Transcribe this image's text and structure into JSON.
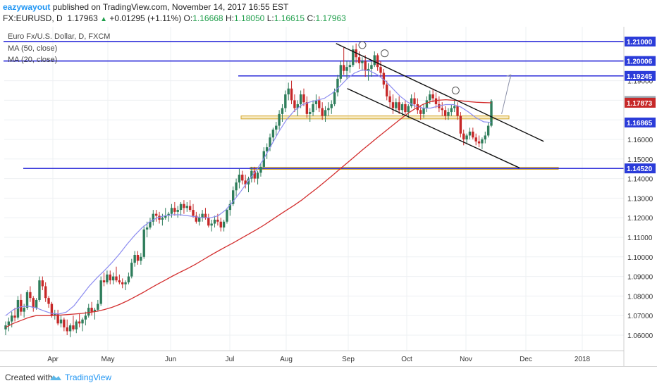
{
  "header": {
    "author": "eazywayout",
    "published_text": "published on TradingView.com, November 14, 2017 16:55 EST",
    "symbol": "FX:EURUSD, D",
    "last": "1.17963",
    "change": "+0.01295 (+1.11%)",
    "o_label": "O:",
    "o": "1.16668",
    "h_label": "H:",
    "h": "1.18050",
    "l_label": "L:",
    "l": "1.16615",
    "c_label": "C:",
    "c": "1.17963"
  },
  "legend": {
    "title": "Euro Fx/U.S. Dollar, D, FXCM",
    "ma50": "MA (50, close)",
    "ma20": "MA (20, close)"
  },
  "footer": {
    "created_with": "Created with",
    "brand": "TradingView"
  },
  "colors": {
    "up": "#2e7d5b",
    "down": "#c62828",
    "ma50": "#d32f2f",
    "ma20": "#8c8cf0",
    "level_line": "#1a1ad6",
    "zone": "#d4a72c",
    "price_tag": "#2b3cd9"
  },
  "chart_data": {
    "type": "candlestick",
    "symbol": "EURUSD",
    "timeframe": "D",
    "ylim": [
      1.055,
      1.215
    ],
    "x_tick_labels": [
      "Apr",
      "May",
      "Jun",
      "Jul",
      "Aug",
      "Sep",
      "Oct",
      "Nov",
      "Dec",
      "2018"
    ],
    "y_tick_labels": [
      "1.06000",
      "1.07000",
      "1.08000",
      "1.09000",
      "1.10000",
      "1.11000",
      "1.12000",
      "1.13000",
      "1.14000",
      "1.15000",
      "1.16000",
      "1.17000",
      "1.18000",
      "1.19000",
      "1.20000",
      "1.21000"
    ],
    "y_tick_values": [
      1.06,
      1.07,
      1.08,
      1.09,
      1.1,
      1.11,
      1.12,
      1.13,
      1.14,
      1.15,
      1.16,
      1.17,
      1.18,
      1.19,
      1.2,
      1.21
    ],
    "price_labels": [
      {
        "text": "1.21000",
        "value": 1.21,
        "kind": "level"
      },
      {
        "text": "1.20006",
        "value": 1.20006,
        "kind": "level"
      },
      {
        "text": "1.19245",
        "value": 1.19245,
        "kind": "level"
      },
      {
        "text": "1.17963",
        "value": 1.17963,
        "kind": "last"
      },
      {
        "text": "1.17873",
        "value": 1.17873,
        "kind": "ma50"
      },
      {
        "text": "1.16865",
        "value": 1.16865,
        "kind": "ma20"
      },
      {
        "text": "1.14520",
        "value": 1.1452,
        "kind": "level"
      }
    ],
    "horizontal_levels": [
      1.21,
      1.20006,
      1.19245,
      1.1452
    ],
    "support_zone": [
      1.1705,
      1.172
    ],
    "support_zone_lower": [
      1.1448,
      1.1458
    ],
    "candles": [
      [
        1.063,
        1.067,
        1.06,
        1.065
      ],
      [
        1.065,
        1.069,
        1.062,
        1.067
      ],
      [
        1.067,
        1.072,
        1.064,
        1.07
      ],
      [
        1.07,
        1.074,
        1.067,
        1.069
      ],
      [
        1.069,
        1.08,
        1.068,
        1.078
      ],
      [
        1.078,
        1.081,
        1.07,
        1.072
      ],
      [
        1.072,
        1.076,
        1.069,
        1.074
      ],
      [
        1.074,
        1.083,
        1.073,
        1.082
      ],
      [
        1.082,
        1.085,
        1.077,
        1.079
      ],
      [
        1.079,
        1.08,
        1.072,
        1.074
      ],
      [
        1.074,
        1.079,
        1.073,
        1.078
      ],
      [
        1.078,
        1.09,
        1.077,
        1.088
      ],
      [
        1.088,
        1.09,
        1.083,
        1.085
      ],
      [
        1.085,
        1.087,
        1.077,
        1.079
      ],
      [
        1.079,
        1.08,
        1.074,
        1.076
      ],
      [
        1.076,
        1.077,
        1.069,
        1.07
      ],
      [
        1.07,
        1.073,
        1.068,
        1.071
      ],
      [
        1.071,
        1.073,
        1.065,
        1.066
      ],
      [
        1.066,
        1.07,
        1.064,
        1.068
      ],
      [
        1.068,
        1.069,
        1.062,
        1.064
      ],
      [
        1.064,
        1.068,
        1.06,
        1.062
      ],
      [
        1.062,
        1.066,
        1.059,
        1.065
      ],
      [
        1.065,
        1.07,
        1.062,
        1.063
      ],
      [
        1.063,
        1.068,
        1.061,
        1.067
      ],
      [
        1.067,
        1.071,
        1.064,
        1.066
      ],
      [
        1.066,
        1.069,
        1.062,
        1.068
      ],
      [
        1.068,
        1.072,
        1.065,
        1.07
      ],
      [
        1.07,
        1.076,
        1.069,
        1.074
      ],
      [
        1.074,
        1.077,
        1.07,
        1.072
      ],
      [
        1.072,
        1.074,
        1.068,
        1.073
      ],
      [
        1.073,
        1.078,
        1.072,
        1.076
      ],
      [
        1.076,
        1.09,
        1.075,
        1.088
      ],
      [
        1.088,
        1.092,
        1.085,
        1.087
      ],
      [
        1.087,
        1.093,
        1.086,
        1.091
      ],
      [
        1.091,
        1.093,
        1.086,
        1.088
      ],
      [
        1.088,
        1.092,
        1.086,
        1.09
      ],
      [
        1.09,
        1.095,
        1.087,
        1.088
      ],
      [
        1.088,
        1.091,
        1.086,
        1.087
      ],
      [
        1.087,
        1.089,
        1.084,
        1.086
      ],
      [
        1.086,
        1.088,
        1.083,
        1.087
      ],
      [
        1.087,
        1.092,
        1.086,
        1.09
      ],
      [
        1.09,
        1.099,
        1.089,
        1.097
      ],
      [
        1.097,
        1.103,
        1.095,
        1.101
      ],
      [
        1.101,
        1.103,
        1.096,
        1.098
      ],
      [
        1.098,
        1.102,
        1.096,
        1.1
      ],
      [
        1.1,
        1.116,
        1.099,
        1.114
      ],
      [
        1.114,
        1.118,
        1.11,
        1.115
      ],
      [
        1.115,
        1.12,
        1.114,
        1.118
      ],
      [
        1.118,
        1.124,
        1.116,
        1.122
      ],
      [
        1.122,
        1.124,
        1.118,
        1.121
      ],
      [
        1.121,
        1.123,
        1.117,
        1.119
      ],
      [
        1.119,
        1.122,
        1.116,
        1.12
      ],
      [
        1.12,
        1.125,
        1.119,
        1.121
      ],
      [
        1.121,
        1.123,
        1.118,
        1.122
      ],
      [
        1.122,
        1.127,
        1.12,
        1.125
      ],
      [
        1.125,
        1.128,
        1.121,
        1.123
      ],
      [
        1.123,
        1.126,
        1.12,
        1.124
      ],
      [
        1.124,
        1.128,
        1.121,
        1.127
      ],
      [
        1.127,
        1.129,
        1.122,
        1.125
      ],
      [
        1.125,
        1.128,
        1.123,
        1.126
      ],
      [
        1.126,
        1.129,
        1.123,
        1.124
      ],
      [
        1.124,
        1.127,
        1.12,
        1.121
      ],
      [
        1.121,
        1.123,
        1.117,
        1.118
      ],
      [
        1.118,
        1.122,
        1.116,
        1.12
      ],
      [
        1.12,
        1.124,
        1.118,
        1.122
      ],
      [
        1.122,
        1.125,
        1.119,
        1.12
      ],
      [
        1.12,
        1.122,
        1.115,
        1.116
      ],
      [
        1.116,
        1.119,
        1.113,
        1.117
      ],
      [
        1.117,
        1.121,
        1.115,
        1.119
      ],
      [
        1.119,
        1.122,
        1.116,
        1.118
      ],
      [
        1.118,
        1.12,
        1.113,
        1.115
      ],
      [
        1.115,
        1.119,
        1.113,
        1.118
      ],
      [
        1.118,
        1.125,
        1.117,
        1.124
      ],
      [
        1.124,
        1.129,
        1.121,
        1.127
      ],
      [
        1.127,
        1.136,
        1.126,
        1.134
      ],
      [
        1.134,
        1.14,
        1.131,
        1.138
      ],
      [
        1.138,
        1.145,
        1.135,
        1.142
      ],
      [
        1.142,
        1.144,
        1.137,
        1.139
      ],
      [
        1.139,
        1.142,
        1.135,
        1.137
      ],
      [
        1.137,
        1.141,
        1.133,
        1.14
      ],
      [
        1.14,
        1.146,
        1.138,
        1.144
      ],
      [
        1.144,
        1.146,
        1.138,
        1.14
      ],
      [
        1.14,
        1.144,
        1.137,
        1.143
      ],
      [
        1.143,
        1.148,
        1.141,
        1.146
      ],
      [
        1.146,
        1.156,
        1.145,
        1.154
      ],
      [
        1.154,
        1.158,
        1.15,
        1.156
      ],
      [
        1.156,
        1.163,
        1.154,
        1.161
      ],
      [
        1.161,
        1.166,
        1.159,
        1.165
      ],
      [
        1.165,
        1.169,
        1.162,
        1.167
      ],
      [
        1.167,
        1.175,
        1.165,
        1.173
      ],
      [
        1.173,
        1.178,
        1.169,
        1.176
      ],
      [
        1.176,
        1.185,
        1.174,
        1.183
      ],
      [
        1.183,
        1.189,
        1.18,
        1.186
      ],
      [
        1.186,
        1.19,
        1.178,
        1.18
      ],
      [
        1.18,
        1.183,
        1.174,
        1.176
      ],
      [
        1.176,
        1.18,
        1.172,
        1.178
      ],
      [
        1.178,
        1.185,
        1.176,
        1.183
      ],
      [
        1.183,
        1.186,
        1.177,
        1.179
      ],
      [
        1.179,
        1.182,
        1.171,
        1.173
      ],
      [
        1.173,
        1.176,
        1.169,
        1.174
      ],
      [
        1.174,
        1.18,
        1.172,
        1.178
      ],
      [
        1.178,
        1.183,
        1.175,
        1.18
      ],
      [
        1.18,
        1.182,
        1.174,
        1.176
      ],
      [
        1.176,
        1.179,
        1.17,
        1.172
      ],
      [
        1.172,
        1.177,
        1.169,
        1.175
      ],
      [
        1.175,
        1.179,
        1.172,
        1.176
      ],
      [
        1.176,
        1.18,
        1.173,
        1.178
      ],
      [
        1.178,
        1.186,
        1.177,
        1.184
      ],
      [
        1.184,
        1.193,
        1.182,
        1.191
      ],
      [
        1.191,
        1.2,
        1.189,
        1.198
      ],
      [
        1.198,
        1.207,
        1.193,
        1.195
      ],
      [
        1.195,
        1.2,
        1.191,
        1.197
      ],
      [
        1.197,
        1.2,
        1.194,
        1.198
      ],
      [
        1.198,
        1.208,
        1.197,
        1.206
      ],
      [
        1.206,
        1.209,
        1.199,
        1.202
      ],
      [
        1.202,
        1.205,
        1.196,
        1.199
      ],
      [
        1.199,
        1.202,
        1.195,
        1.2
      ],
      [
        1.2,
        1.203,
        1.192,
        1.195
      ],
      [
        1.195,
        1.199,
        1.19,
        1.196
      ],
      [
        1.196,
        1.2,
        1.192,
        1.198
      ],
      [
        1.198,
        1.205,
        1.197,
        1.203
      ],
      [
        1.203,
        1.204,
        1.195,
        1.197
      ],
      [
        1.197,
        1.2,
        1.192,
        1.194
      ],
      [
        1.194,
        1.196,
        1.186,
        1.188
      ],
      [
        1.188,
        1.19,
        1.18,
        1.182
      ],
      [
        1.182,
        1.185,
        1.176,
        1.179
      ],
      [
        1.179,
        1.183,
        1.173,
        1.176
      ],
      [
        1.176,
        1.181,
        1.174,
        1.179
      ],
      [
        1.179,
        1.182,
        1.173,
        1.175
      ],
      [
        1.175,
        1.179,
        1.172,
        1.178
      ],
      [
        1.178,
        1.18,
        1.173,
        1.174
      ],
      [
        1.174,
        1.178,
        1.171,
        1.177
      ],
      [
        1.177,
        1.183,
        1.176,
        1.181
      ],
      [
        1.181,
        1.184,
        1.176,
        1.178
      ],
      [
        1.178,
        1.181,
        1.173,
        1.175
      ],
      [
        1.175,
        1.177,
        1.17,
        1.173
      ],
      [
        1.173,
        1.178,
        1.171,
        1.176
      ],
      [
        1.176,
        1.182,
        1.174,
        1.18
      ],
      [
        1.18,
        1.185,
        1.178,
        1.183
      ],
      [
        1.183,
        1.186,
        1.179,
        1.181
      ],
      [
        1.181,
        1.184,
        1.176,
        1.178
      ],
      [
        1.178,
        1.182,
        1.174,
        1.176
      ],
      [
        1.176,
        1.179,
        1.172,
        1.175
      ],
      [
        1.175,
        1.177,
        1.17,
        1.172
      ],
      [
        1.172,
        1.176,
        1.17,
        1.174
      ],
      [
        1.174,
        1.178,
        1.172,
        1.176
      ],
      [
        1.176,
        1.18,
        1.174,
        1.177
      ],
      [
        1.177,
        1.179,
        1.17,
        1.172
      ],
      [
        1.172,
        1.174,
        1.161,
        1.163
      ],
      [
        1.163,
        1.165,
        1.157,
        1.16
      ],
      [
        1.16,
        1.163,
        1.158,
        1.162
      ],
      [
        1.162,
        1.166,
        1.16,
        1.164
      ],
      [
        1.164,
        1.166,
        1.16,
        1.161
      ],
      [
        1.161,
        1.163,
        1.157,
        1.159
      ],
      [
        1.159,
        1.162,
        1.156,
        1.158
      ],
      [
        1.158,
        1.161,
        1.155,
        1.16
      ],
      [
        1.16,
        1.164,
        1.158,
        1.162
      ],
      [
        1.162,
        1.169,
        1.161,
        1.167
      ],
      [
        1.167,
        1.1805,
        1.1662,
        1.1796
      ]
    ],
    "ma50": [
      1.064,
      1.066,
      1.0675,
      1.069,
      1.07,
      1.07,
      1.07,
      1.0702,
      1.0705,
      1.0708,
      1.0711,
      1.0716,
      1.0722,
      1.0731,
      1.0742,
      1.0757,
      1.0775,
      1.0795,
      1.0816,
      1.0838,
      1.086,
      1.0881,
      1.0902,
      1.0922,
      1.0941,
      1.0962,
      1.0985,
      1.1008,
      1.103,
      1.1051,
      1.1072,
      1.1094,
      1.1116,
      1.1138,
      1.1161,
      1.1187,
      1.1213,
      1.1238,
      1.1263,
      1.129,
      1.132,
      1.135,
      1.1382,
      1.1414,
      1.1447,
      1.148,
      1.1513,
      1.1546,
      1.1578,
      1.161,
      1.1641,
      1.1672,
      1.1703,
      1.1733,
      1.1758,
      1.1779,
      1.1793,
      1.18,
      1.1803,
      1.18,
      1.1797,
      1.1793,
      1.179,
      1.1788,
      1.1787
    ],
    "ma20": [
      1.07,
      1.073,
      1.0745,
      1.0748,
      1.074,
      1.0725,
      1.0712,
      1.0708,
      1.0718,
      1.075,
      1.08,
      1.085,
      1.0892,
      1.093,
      1.097,
      1.1015,
      1.1065,
      1.111,
      1.115,
      1.118,
      1.12,
      1.121,
      1.1215,
      1.1215,
      1.121,
      1.1205,
      1.12,
      1.12,
      1.121,
      1.124,
      1.1285,
      1.1335,
      1.139,
      1.144,
      1.15,
      1.157,
      1.164,
      1.17,
      1.1745,
      1.1775,
      1.179,
      1.18,
      1.181,
      1.1835,
      1.187,
      1.191,
      1.194,
      1.1955,
      1.195,
      1.193,
      1.19,
      1.186,
      1.182,
      1.179,
      1.177,
      1.176,
      1.176,
      1.177,
      1.1778,
      1.1778,
      1.1765,
      1.174,
      1.171,
      1.169,
      1.1687
    ],
    "trendlines": [
      {
        "name": "upper-channel",
        "from": [
          0.5115,
          1.209
        ],
        "to": [
          0.8275,
          1.159
        ]
      },
      {
        "name": "lower-channel",
        "from": [
          0.5285,
          1.186
        ],
        "to": [
          0.7905,
          1.1455
        ]
      },
      {
        "name": "projection-arrow",
        "from": [
          0.7635,
          1.173
        ],
        "to": [
          0.7775,
          1.193
        ]
      }
    ],
    "annotated_highs": [
      [
        0.5515,
        1.2082
      ],
      [
        0.5855,
        1.204
      ],
      [
        0.6935,
        1.185
      ]
    ]
  }
}
